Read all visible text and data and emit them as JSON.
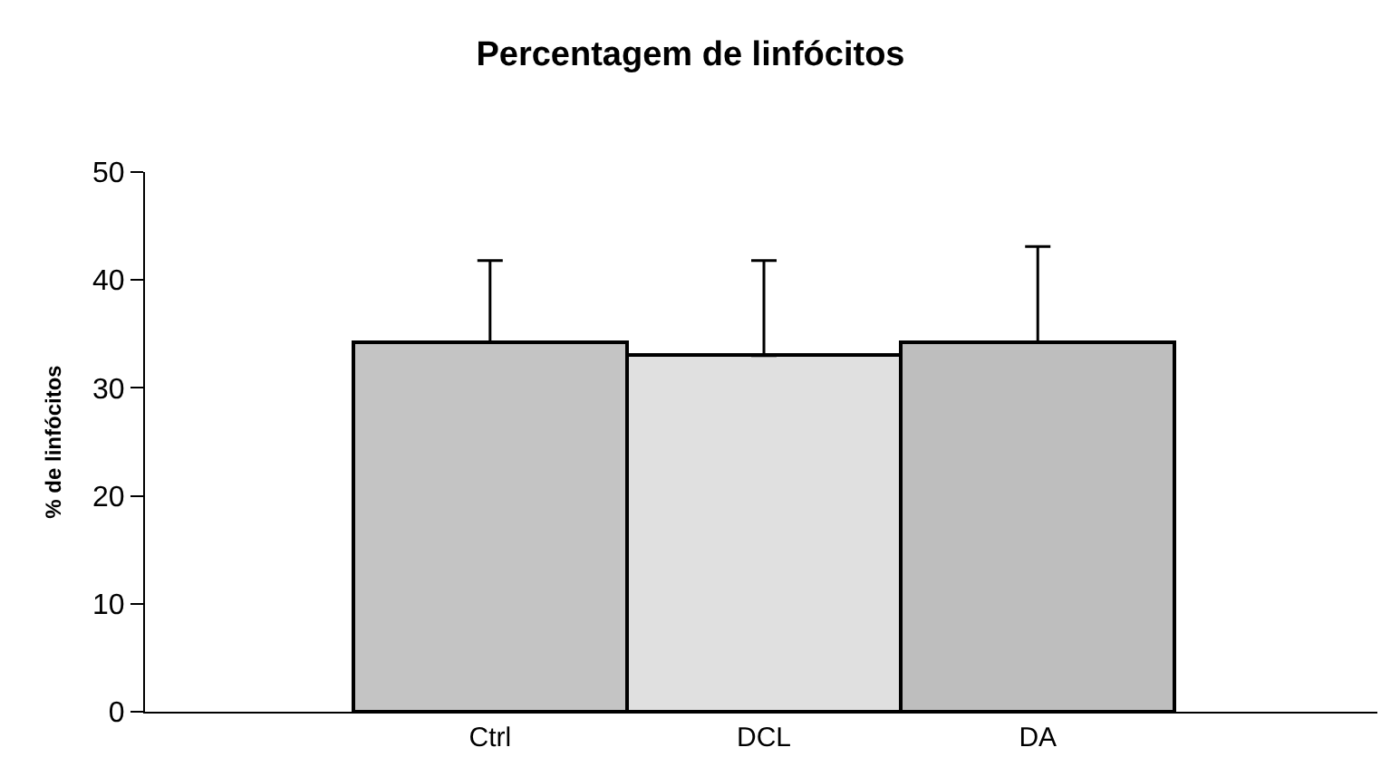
{
  "chart_data": {
    "type": "bar",
    "title": "Percentagem de linfócitos",
    "ylabel": "% de linfócitos",
    "categories": [
      "Ctrl",
      "DCL",
      "DA"
    ],
    "values": [
      34.2,
      33.0,
      34.2
    ],
    "errors": [
      [
        34.2,
        41.8
      ],
      [
        33.0,
        41.8
      ],
      [
        34.2,
        43.1
      ]
    ],
    "colors": [
      "#c4c4c4",
      "#e0e0e0",
      "#bebebe"
    ],
    "ylim": [
      0,
      50
    ],
    "yticks": [
      0,
      10,
      20,
      30,
      40,
      50
    ]
  }
}
